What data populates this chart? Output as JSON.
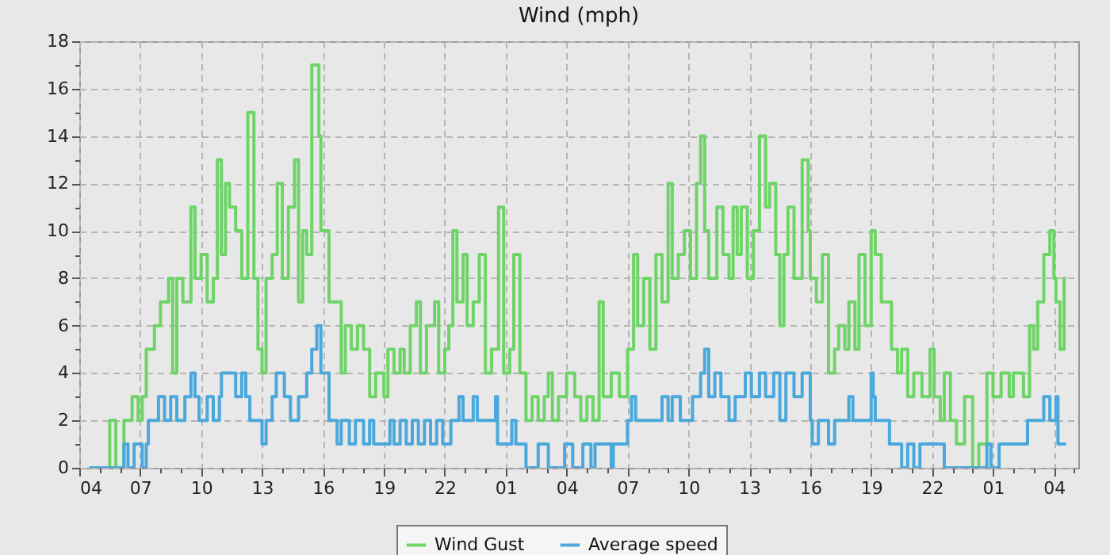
{
  "chart_data": {
    "type": "step",
    "title": "Wind (mph)",
    "grid": true,
    "legend": "bottom",
    "xlim": [
      "--01-01T04:00",
      "--01-03T05:12"
    ],
    "ylim": [
      0,
      18
    ],
    "xticks": [
      {
        "value": "--01-01T04:00",
        "label": "04"
      },
      {
        "value": "--01-01T05:00",
        "label": null
      },
      {
        "value": "--01-01T06:00",
        "label": null
      },
      {
        "value": "--01-01T07:00",
        "label": "07"
      },
      {
        "value": "--01-01T08:00",
        "label": null
      },
      {
        "value": "--01-01T09:00",
        "label": null
      },
      {
        "value": "--01-01T10:00",
        "label": "10"
      },
      {
        "value": "--01-01T11:00",
        "label": null
      },
      {
        "value": "--01-01T12:00",
        "label": null
      },
      {
        "value": "--01-01T13:00",
        "label": "13"
      },
      {
        "value": "--01-01T14:00",
        "label": null
      },
      {
        "value": "--01-01T15:00",
        "label": null
      },
      {
        "value": "--01-01T16:00",
        "label": "16"
      },
      {
        "value": "--01-01T17:00",
        "label": null
      },
      {
        "value": "--01-01T18:00",
        "label": null
      },
      {
        "value": "--01-01T19:00",
        "label": "19"
      },
      {
        "value": "--01-01T20:00",
        "label": null
      },
      {
        "value": "--01-01T21:00",
        "label": null
      },
      {
        "value": "--01-01T22:00",
        "label": "22"
      },
      {
        "value": "--01-01T23:00",
        "label": null
      },
      {
        "value": "--01-02T00:00",
        "label": null
      },
      {
        "value": "--01-02T01:00",
        "label": "01"
      },
      {
        "value": "--01-02T02:00",
        "label": null
      },
      {
        "value": "--01-02T03:00",
        "label": null
      },
      {
        "value": "--01-02T04:00",
        "label": "04"
      },
      {
        "value": "--01-02T05:00",
        "label": null
      },
      {
        "value": "--01-02T06:00",
        "label": null
      },
      {
        "value": "--01-02T07:00",
        "label": "07"
      },
      {
        "value": "--01-02T08:00",
        "label": null
      },
      {
        "value": "--01-02T09:00",
        "label": null
      },
      {
        "value": "--01-02T10:00",
        "label": "10"
      },
      {
        "value": "--01-02T11:00",
        "label": null
      },
      {
        "value": "--01-02T12:00",
        "label": null
      },
      {
        "value": "--01-02T13:00",
        "label": "13"
      },
      {
        "value": "--01-02T14:00",
        "label": null
      },
      {
        "value": "--01-02T15:00",
        "label": null
      },
      {
        "value": "--01-02T16:00",
        "label": "16"
      },
      {
        "value": "--01-02T17:00",
        "label": null
      },
      {
        "value": "--01-02T18:00",
        "label": null
      },
      {
        "value": "--01-02T19:00",
        "label": "19"
      },
      {
        "value": "--01-02T20:00",
        "label": null
      },
      {
        "value": "--01-02T21:00",
        "label": null
      },
      {
        "value": "--01-02T22:00",
        "label": "22"
      },
      {
        "value": "--01-02T23:00",
        "label": null
      },
      {
        "value": "--01-03T00:00",
        "label": null
      },
      {
        "value": "--01-03T01:00",
        "label": "01"
      },
      {
        "value": "--01-03T02:00",
        "label": null
      },
      {
        "value": "--01-03T03:00",
        "label": null
      },
      {
        "value": "--01-03T04:00",
        "label": "04"
      },
      {
        "value": "--01-03T05:00",
        "label": null
      }
    ],
    "yticks": [
      0,
      {
        "value": 1,
        "label": null
      },
      2,
      {
        "value": 3,
        "label": null
      },
      4,
      {
        "value": 5,
        "label": null
      },
      6,
      {
        "value": 7,
        "label": null
      },
      8,
      {
        "value": 9,
        "label": null
      },
      10,
      {
        "value": 11,
        "label": null
      },
      12,
      {
        "value": 13,
        "label": null
      },
      14,
      {
        "value": 15,
        "label": null
      },
      16,
      {
        "value": 17,
        "label": null
      },
      18
    ],
    "series": [
      {
        "name": "Wind Gust",
        "color": "#6fd468",
        "x": [
          "--01-01T04:30",
          "--01-01T05:30",
          "--01-01T05:48",
          "--01-01T06:12",
          "--01-01T06:36",
          "--01-01T06:54",
          "--01-01T07:06",
          "--01-01T07:18",
          "--01-01T07:42",
          "--01-01T08:00",
          "--01-01T08:24",
          "--01-01T08:36",
          "--01-01T08:48",
          "--01-01T09:06",
          "--01-01T09:30",
          "--01-01T09:42",
          "--01-01T10:00",
          "--01-01T10:18",
          "--01-01T10:36",
          "--01-01T10:48",
          "--01-01T11:00",
          "--01-01T11:12",
          "--01-01T11:24",
          "--01-01T11:42",
          "--01-01T12:00",
          "--01-01T12:18",
          "--01-01T12:36",
          "--01-01T12:48",
          "--01-01T13:00",
          "--01-01T13:12",
          "--01-01T13:30",
          "--01-01T13:45",
          "--01-01T14:00",
          "--01-01T14:18",
          "--01-01T14:36",
          "--01-01T14:48",
          "--01-01T15:00",
          "--01-01T15:12",
          "--01-01T15:27",
          "--01-01T15:48",
          "--01-01T15:54",
          "--01-01T16:18",
          "--01-01T16:54",
          "--01-01T17:06",
          "--01-01T17:24",
          "--01-01T17:42",
          "--01-01T18:00",
          "--01-01T18:18",
          "--01-01T18:36",
          "--01-01T19:00",
          "--01-01T19:12",
          "--01-01T19:30",
          "--01-01T19:48",
          "--01-01T20:00",
          "--01-01T20:18",
          "--01-01T20:36",
          "--01-01T20:48",
          "--01-01T21:06",
          "--01-01T21:30",
          "--01-01T21:42",
          "--01-01T22:00",
          "--01-01T22:12",
          "--01-01T22:24",
          "--01-01T22:36",
          "--01-01T22:54",
          "--01-01T23:06",
          "--01-01T23:24",
          "--01-01T23:42",
          "--01-02T00:00",
          "--01-02T00:18",
          "--01-02T00:39",
          "--01-02T00:54",
          "--01-02T01:12",
          "--01-02T01:24",
          "--01-02T01:42",
          "--01-02T02:00",
          "--01-02T02:18",
          "--01-02T02:36",
          "--01-02T02:54",
          "--01-02T03:06",
          "--01-02T03:18",
          "--01-02T03:36",
          "--01-02T04:00",
          "--01-02T04:24",
          "--01-02T04:42",
          "--01-02T05:00",
          "--01-02T05:18",
          "--01-02T05:36",
          "--01-02T05:48",
          "--01-02T06:12",
          "--01-02T06:36",
          "--01-02T07:00",
          "--01-02T07:18",
          "--01-02T07:30",
          "--01-02T07:48",
          "--01-02T08:06",
          "--01-02T08:24",
          "--01-02T08:42",
          "--01-02T09:00",
          "--01-02T09:12",
          "--01-02T09:30",
          "--01-02T09:48",
          "--01-02T10:06",
          "--01-02T10:24",
          "--01-02T10:36",
          "--01-02T10:48",
          "--01-02T11:00",
          "--01-02T11:24",
          "--01-02T11:42",
          "--01-02T12:00",
          "--01-02T12:12",
          "--01-02T12:24",
          "--01-02T12:36",
          "--01-02T12:54",
          "--01-02T13:12",
          "--01-02T13:30",
          "--01-02T13:48",
          "--01-02T14:00",
          "--01-02T14:18",
          "--01-02T14:30",
          "--01-02T14:42",
          "--01-02T14:54",
          "--01-02T15:12",
          "--01-02T15:36",
          "--01-02T15:54",
          "--01-02T16:00",
          "--01-02T16:18",
          "--01-02T16:36",
          "--01-02T16:54",
          "--01-02T17:12",
          "--01-02T17:24",
          "--01-02T17:42",
          "--01-02T17:54",
          "--01-02T18:12",
          "--01-02T18:24",
          "--01-02T18:42",
          "--01-02T19:00",
          "--01-02T19:12",
          "--01-02T19:30",
          "--01-02T20:00",
          "--01-02T20:18",
          "--01-02T20:30",
          "--01-02T20:48",
          "--01-02T21:06",
          "--01-02T21:30",
          "--01-02T21:54",
          "--01-02T22:06",
          "--01-02T22:24",
          "--01-02T22:36",
          "--01-02T22:54",
          "--01-02T23:12",
          "--01-02T23:36",
          "--01-03T00:00",
          "--01-03T00:18",
          "--01-03T00:42",
          "--01-03T01:00",
          "--01-03T01:24",
          "--01-03T01:48",
          "--01-03T02:00",
          "--01-03T02:30",
          "--01-03T02:48",
          "--01-03T03:00",
          "--01-03T03:12",
          "--01-03T03:30",
          "--01-03T03:48",
          "--01-03T04:00",
          "--01-03T04:06",
          "--01-03T04:18",
          "--01-03T04:30",
          "--01-03T04:36"
        ],
        "values": [
          0,
          2,
          0,
          2,
          3,
          2,
          3,
          5,
          6,
          7,
          8,
          4,
          8,
          7,
          11,
          8,
          9,
          7,
          8,
          13,
          9,
          12,
          11,
          10,
          8,
          15,
          8,
          5,
          4,
          8,
          9,
          12,
          8,
          11,
          13,
          7,
          10,
          9,
          17,
          14,
          10,
          7,
          4,
          6,
          5,
          6,
          5,
          3,
          4,
          3,
          5,
          4,
          5,
          4,
          6,
          7,
          4,
          6,
          7,
          4,
          5,
          6,
          10,
          7,
          9,
          6,
          7,
          9,
          4,
          5,
          11,
          4,
          5,
          9,
          4,
          2,
          3,
          2,
          3,
          4,
          2,
          3,
          4,
          3,
          2,
          3,
          2,
          7,
          3,
          4,
          3,
          5,
          9,
          6,
          8,
          5,
          9,
          7,
          12,
          8,
          9,
          10,
          8,
          12,
          14,
          10,
          8,
          11,
          9,
          8,
          11,
          9,
          11,
          8,
          10,
          14,
          11,
          12,
          9,
          6,
          9,
          11,
          8,
          13,
          10,
          8,
          7,
          9,
          4,
          5,
          6,
          5,
          7,
          5,
          9,
          6,
          10,
          9,
          7,
          5,
          4,
          5,
          3,
          4,
          3,
          5,
          3,
          2,
          4,
          2,
          1,
          3,
          0,
          1,
          4,
          3,
          4,
          3,
          4,
          3,
          6,
          5,
          7,
          9,
          10,
          8,
          7,
          5,
          8,
          8
        ]
      },
      {
        "name": "Average speed",
        "color": "#4aa8dc",
        "x": [
          "--01-01T04:30",
          "--01-01T06:12",
          "--01-01T06:24",
          "--01-01T06:42",
          "--01-01T07:06",
          "--01-01T07:18",
          "--01-01T07:24",
          "--01-01T07:54",
          "--01-01T08:12",
          "--01-01T08:30",
          "--01-01T08:48",
          "--01-01T09:12",
          "--01-01T09:30",
          "--01-01T09:42",
          "--01-01T09:54",
          "--01-01T10:18",
          "--01-01T10:36",
          "--01-01T10:54",
          "--01-01T11:00",
          "--01-01T11:42",
          "--01-01T12:00",
          "--01-01T12:12",
          "--01-01T12:24",
          "--01-01T13:00",
          "--01-01T13:12",
          "--01-01T13:30",
          "--01-01T13:42",
          "--01-01T14:06",
          "--01-01T14:24",
          "--01-01T14:48",
          "--01-01T15:12",
          "--01-01T15:27",
          "--01-01T15:42",
          "--01-01T15:54",
          "--01-01T16:18",
          "--01-01T16:42",
          "--01-01T16:54",
          "--01-01T17:18",
          "--01-01T17:36",
          "--01-01T18:00",
          "--01-01T18:18",
          "--01-01T18:30",
          "--01-01T19:00",
          "--01-01T19:18",
          "--01-01T19:30",
          "--01-01T19:48",
          "--01-01T20:06",
          "--01-01T20:24",
          "--01-01T20:42",
          "--01-01T21:00",
          "--01-01T21:18",
          "--01-01T21:36",
          "--01-01T21:54",
          "--01-01T22:18",
          "--01-01T22:42",
          "--01-01T22:54",
          "--01-01T23:24",
          "--01-01T23:36",
          "--01-02T00:30",
          "--01-02T00:36",
          "--01-02T01:18",
          "--01-02T01:30",
          "--01-02T02:00",
          "--01-02T02:36",
          "--01-02T03:06",
          "--01-02T03:54",
          "--01-02T04:18",
          "--01-02T04:48",
          "--01-02T05:12",
          "--01-02T05:24",
          "--01-02T06:12",
          "--01-02T06:18",
          "--01-02T07:00",
          "--01-02T07:12",
          "--01-02T07:24",
          "--01-02T08:42",
          "--01-02T09:00",
          "--01-02T09:12",
          "--01-02T09:36",
          "--01-02T10:12",
          "--01-02T10:36",
          "--01-02T10:48",
          "--01-02T11:00",
          "--01-02T11:18",
          "--01-02T11:36",
          "--01-02T12:00",
          "--01-02T12:18",
          "--01-02T12:48",
          "--01-02T13:06",
          "--01-02T13:30",
          "--01-02T13:48",
          "--01-02T14:12",
          "--01-02T14:30",
          "--01-02T14:48",
          "--01-02T15:12",
          "--01-02T15:36",
          "--01-02T16:00",
          "--01-02T16:06",
          "--01-02T16:24",
          "--01-02T16:54",
          "--01-02T17:12",
          "--01-02T17:54",
          "--01-02T18:06",
          "--01-02T19:00",
          "--01-02T19:06",
          "--01-02T19:12",
          "--01-02T19:54",
          "--01-02T20:30",
          "--01-02T20:48",
          "--01-02T21:06",
          "--01-02T21:24",
          "--01-02T22:36",
          "--01-03T00:42",
          "--01-03T00:54",
          "--01-03T01:18",
          "--01-03T02:42",
          "--01-03T03:30",
          "--01-03T03:48",
          "--01-03T04:06",
          "--01-03T04:12",
          "--01-03T04:36"
        ],
        "values": [
          0,
          1,
          0,
          1,
          0,
          1,
          2,
          3,
          2,
          3,
          2,
          3,
          4,
          3,
          2,
          3,
          2,
          3,
          4,
          3,
          4,
          3,
          2,
          1,
          2,
          3,
          4,
          3,
          2,
          3,
          4,
          5,
          6,
          4,
          2,
          1,
          2,
          1,
          2,
          1,
          2,
          1,
          1,
          2,
          1,
          2,
          1,
          2,
          1,
          2,
          1,
          2,
          1,
          2,
          3,
          2,
          3,
          2,
          3,
          1,
          2,
          1,
          0,
          1,
          0,
          1,
          0,
          1,
          0,
          1,
          0,
          1,
          2,
          3,
          2,
          3,
          2,
          3,
          2,
          3,
          4,
          5,
          3,
          4,
          3,
          2,
          3,
          4,
          3,
          4,
          3,
          4,
          2,
          4,
          3,
          4,
          2,
          1,
          2,
          1,
          2,
          3,
          2,
          4,
          3,
          2,
          1,
          0,
          1,
          0,
          1,
          0,
          1,
          0,
          1,
          2,
          3,
          2,
          3,
          1,
          1
        ]
      }
    ]
  }
}
